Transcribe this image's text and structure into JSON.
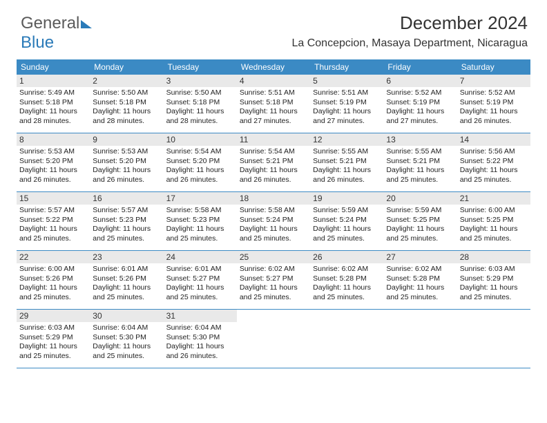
{
  "brand": {
    "part1": "General",
    "part2": "Blue"
  },
  "title": "December 2024",
  "location": "La Concepcion, Masaya Department, Nicaragua",
  "day_headers": [
    "Sunday",
    "Monday",
    "Tuesday",
    "Wednesday",
    "Thursday",
    "Friday",
    "Saturday"
  ],
  "colors": {
    "header_bg": "#3b8ac4",
    "header_fg": "#ffffff",
    "daynum_bg": "#e9e9e9",
    "row_border": "#3b8ac4",
    "brand_blue": "#2a7ab8"
  },
  "weeks": [
    [
      {
        "n": "1",
        "sr": "Sunrise: 5:49 AM",
        "ss": "Sunset: 5:18 PM",
        "d1": "Daylight: 11 hours",
        "d2": "and 28 minutes."
      },
      {
        "n": "2",
        "sr": "Sunrise: 5:50 AM",
        "ss": "Sunset: 5:18 PM",
        "d1": "Daylight: 11 hours",
        "d2": "and 28 minutes."
      },
      {
        "n": "3",
        "sr": "Sunrise: 5:50 AM",
        "ss": "Sunset: 5:18 PM",
        "d1": "Daylight: 11 hours",
        "d2": "and 28 minutes."
      },
      {
        "n": "4",
        "sr": "Sunrise: 5:51 AM",
        "ss": "Sunset: 5:18 PM",
        "d1": "Daylight: 11 hours",
        "d2": "and 27 minutes."
      },
      {
        "n": "5",
        "sr": "Sunrise: 5:51 AM",
        "ss": "Sunset: 5:19 PM",
        "d1": "Daylight: 11 hours",
        "d2": "and 27 minutes."
      },
      {
        "n": "6",
        "sr": "Sunrise: 5:52 AM",
        "ss": "Sunset: 5:19 PM",
        "d1": "Daylight: 11 hours",
        "d2": "and 27 minutes."
      },
      {
        "n": "7",
        "sr": "Sunrise: 5:52 AM",
        "ss": "Sunset: 5:19 PM",
        "d1": "Daylight: 11 hours",
        "d2": "and 26 minutes."
      }
    ],
    [
      {
        "n": "8",
        "sr": "Sunrise: 5:53 AM",
        "ss": "Sunset: 5:20 PM",
        "d1": "Daylight: 11 hours",
        "d2": "and 26 minutes."
      },
      {
        "n": "9",
        "sr": "Sunrise: 5:53 AM",
        "ss": "Sunset: 5:20 PM",
        "d1": "Daylight: 11 hours",
        "d2": "and 26 minutes."
      },
      {
        "n": "10",
        "sr": "Sunrise: 5:54 AM",
        "ss": "Sunset: 5:20 PM",
        "d1": "Daylight: 11 hours",
        "d2": "and 26 minutes."
      },
      {
        "n": "11",
        "sr": "Sunrise: 5:54 AM",
        "ss": "Sunset: 5:21 PM",
        "d1": "Daylight: 11 hours",
        "d2": "and 26 minutes."
      },
      {
        "n": "12",
        "sr": "Sunrise: 5:55 AM",
        "ss": "Sunset: 5:21 PM",
        "d1": "Daylight: 11 hours",
        "d2": "and 26 minutes."
      },
      {
        "n": "13",
        "sr": "Sunrise: 5:55 AM",
        "ss": "Sunset: 5:21 PM",
        "d1": "Daylight: 11 hours",
        "d2": "and 25 minutes."
      },
      {
        "n": "14",
        "sr": "Sunrise: 5:56 AM",
        "ss": "Sunset: 5:22 PM",
        "d1": "Daylight: 11 hours",
        "d2": "and 25 minutes."
      }
    ],
    [
      {
        "n": "15",
        "sr": "Sunrise: 5:57 AM",
        "ss": "Sunset: 5:22 PM",
        "d1": "Daylight: 11 hours",
        "d2": "and 25 minutes."
      },
      {
        "n": "16",
        "sr": "Sunrise: 5:57 AM",
        "ss": "Sunset: 5:23 PM",
        "d1": "Daylight: 11 hours",
        "d2": "and 25 minutes."
      },
      {
        "n": "17",
        "sr": "Sunrise: 5:58 AM",
        "ss": "Sunset: 5:23 PM",
        "d1": "Daylight: 11 hours",
        "d2": "and 25 minutes."
      },
      {
        "n": "18",
        "sr": "Sunrise: 5:58 AM",
        "ss": "Sunset: 5:24 PM",
        "d1": "Daylight: 11 hours",
        "d2": "and 25 minutes."
      },
      {
        "n": "19",
        "sr": "Sunrise: 5:59 AM",
        "ss": "Sunset: 5:24 PM",
        "d1": "Daylight: 11 hours",
        "d2": "and 25 minutes."
      },
      {
        "n": "20",
        "sr": "Sunrise: 5:59 AM",
        "ss": "Sunset: 5:25 PM",
        "d1": "Daylight: 11 hours",
        "d2": "and 25 minutes."
      },
      {
        "n": "21",
        "sr": "Sunrise: 6:00 AM",
        "ss": "Sunset: 5:25 PM",
        "d1": "Daylight: 11 hours",
        "d2": "and 25 minutes."
      }
    ],
    [
      {
        "n": "22",
        "sr": "Sunrise: 6:00 AM",
        "ss": "Sunset: 5:26 PM",
        "d1": "Daylight: 11 hours",
        "d2": "and 25 minutes."
      },
      {
        "n": "23",
        "sr": "Sunrise: 6:01 AM",
        "ss": "Sunset: 5:26 PM",
        "d1": "Daylight: 11 hours",
        "d2": "and 25 minutes."
      },
      {
        "n": "24",
        "sr": "Sunrise: 6:01 AM",
        "ss": "Sunset: 5:27 PM",
        "d1": "Daylight: 11 hours",
        "d2": "and 25 minutes."
      },
      {
        "n": "25",
        "sr": "Sunrise: 6:02 AM",
        "ss": "Sunset: 5:27 PM",
        "d1": "Daylight: 11 hours",
        "d2": "and 25 minutes."
      },
      {
        "n": "26",
        "sr": "Sunrise: 6:02 AM",
        "ss": "Sunset: 5:28 PM",
        "d1": "Daylight: 11 hours",
        "d2": "and 25 minutes."
      },
      {
        "n": "27",
        "sr": "Sunrise: 6:02 AM",
        "ss": "Sunset: 5:28 PM",
        "d1": "Daylight: 11 hours",
        "d2": "and 25 minutes."
      },
      {
        "n": "28",
        "sr": "Sunrise: 6:03 AM",
        "ss": "Sunset: 5:29 PM",
        "d1": "Daylight: 11 hours",
        "d2": "and 25 minutes."
      }
    ],
    [
      {
        "n": "29",
        "sr": "Sunrise: 6:03 AM",
        "ss": "Sunset: 5:29 PM",
        "d1": "Daylight: 11 hours",
        "d2": "and 25 minutes."
      },
      {
        "n": "30",
        "sr": "Sunrise: 6:04 AM",
        "ss": "Sunset: 5:30 PM",
        "d1": "Daylight: 11 hours",
        "d2": "and 25 minutes."
      },
      {
        "n": "31",
        "sr": "Sunrise: 6:04 AM",
        "ss": "Sunset: 5:30 PM",
        "d1": "Daylight: 11 hours",
        "d2": "and 26 minutes."
      },
      null,
      null,
      null,
      null
    ]
  ]
}
